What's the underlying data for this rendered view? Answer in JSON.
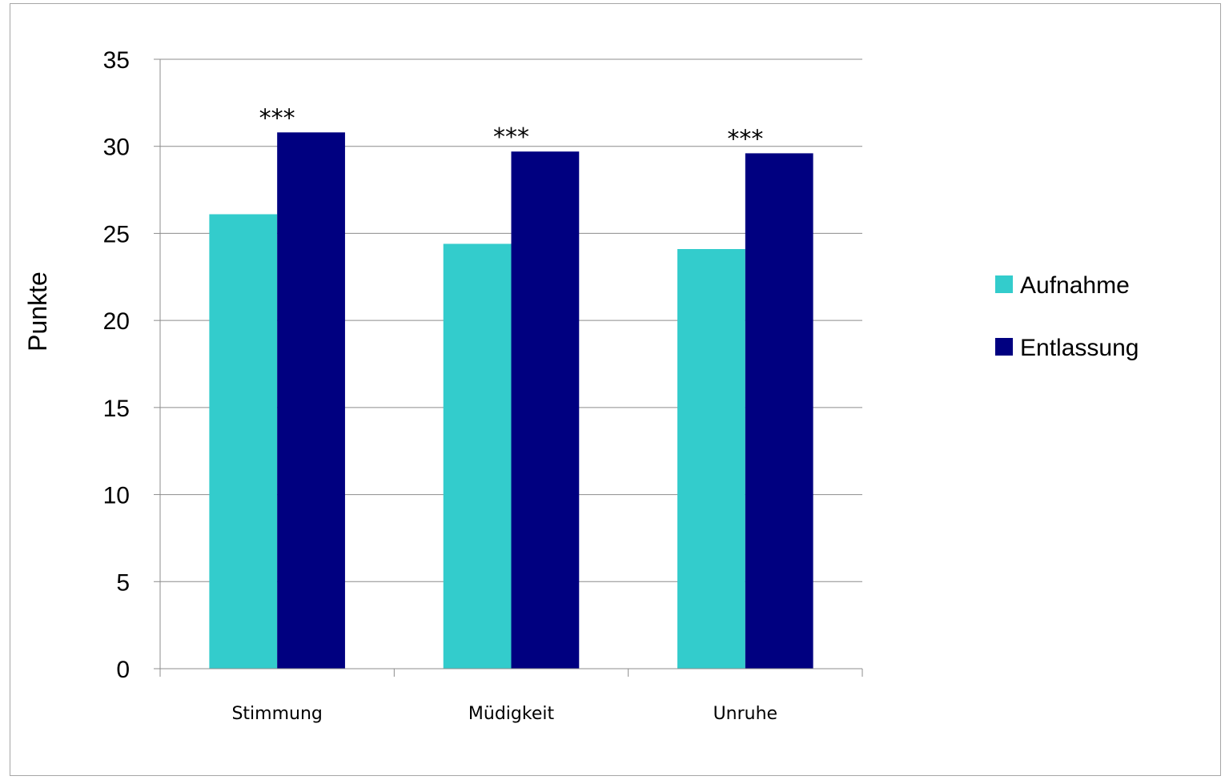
{
  "chart_data": {
    "type": "bar",
    "title": "",
    "xlabel": "",
    "ylabel": "Punkte",
    "categories": [
      "Stimmung",
      "Müdigkeit",
      "Unruhe"
    ],
    "series": [
      {
        "name": "Aufnahme",
        "values": [
          26.1,
          24.4,
          24.1
        ],
        "color": "#33cccc"
      },
      {
        "name": "Entlassung",
        "values": [
          30.8,
          29.7,
          29.6
        ],
        "color": "#000080"
      }
    ],
    "ylim": [
      0,
      35
    ],
    "yticks": [
      0,
      5,
      10,
      15,
      20,
      25,
      30,
      35
    ],
    "grid": true,
    "legend": "right",
    "annotations": [
      "***",
      "***",
      "***"
    ]
  }
}
